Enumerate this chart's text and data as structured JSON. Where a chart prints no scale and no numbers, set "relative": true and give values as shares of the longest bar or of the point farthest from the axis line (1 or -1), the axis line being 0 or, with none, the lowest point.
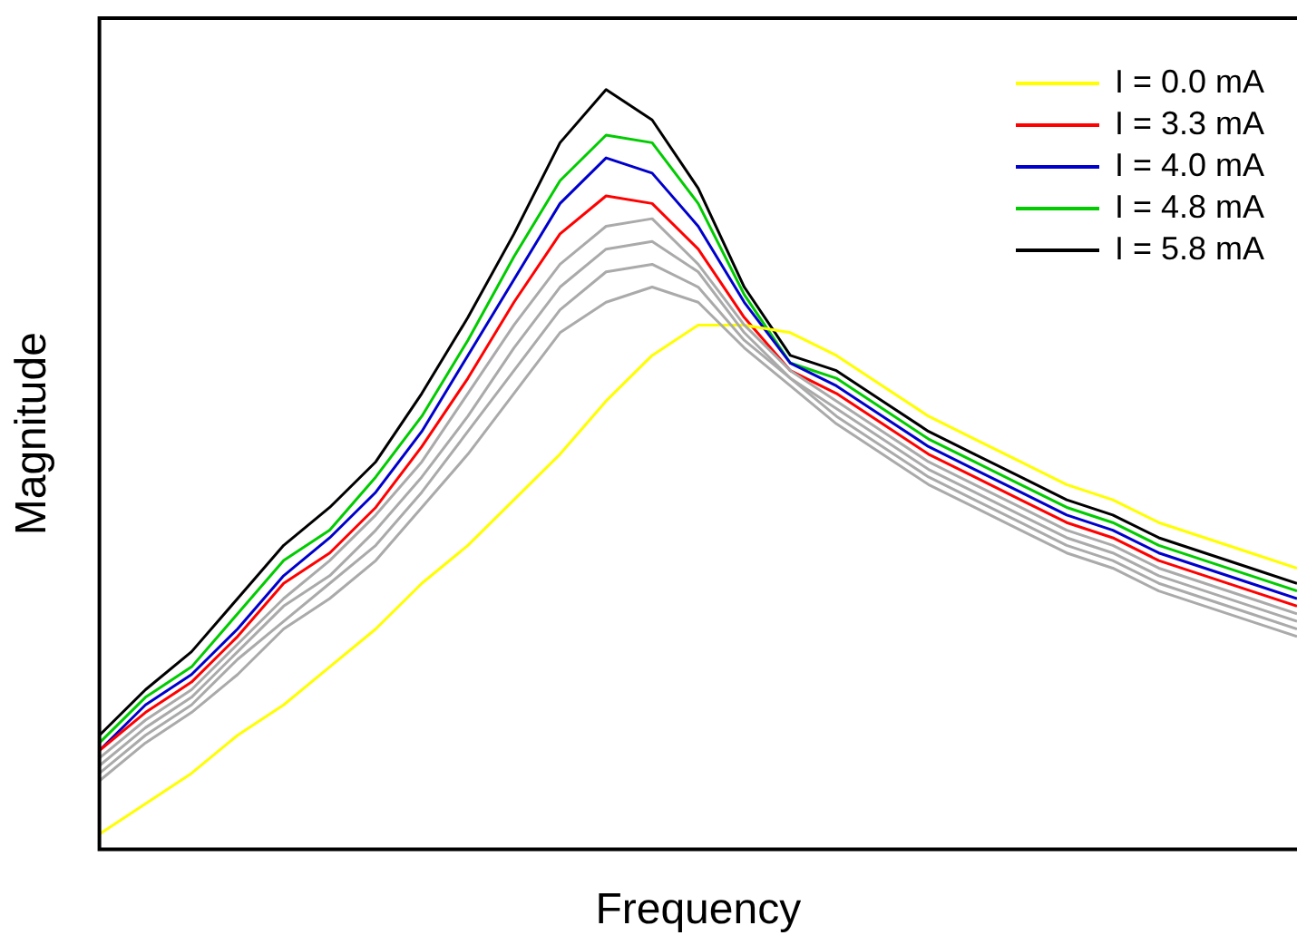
{
  "chart_data": {
    "type": "line",
    "xlabel": "Frequency",
    "ylabel": "Magnitude",
    "relative": true,
    "tick_labels": false,
    "grid": false,
    "legend": "top right",
    "marker": "none",
    "line_style": "solid",
    "categories": [
      null,
      null,
      null,
      null,
      null,
      null,
      null,
      null,
      null,
      null,
      null,
      null,
      null,
      null,
      null,
      null,
      null,
      null,
      null,
      null,
      null,
      null,
      null,
      null,
      null,
      null,
      null
    ],
    "series": [
      {
        "color": "#aaaaaa",
        "values": [
          0.09,
          0.14,
          0.18,
          0.23,
          0.29,
          0.33,
          0.38,
          0.45,
          0.52,
          0.6,
          0.68,
          0.72,
          0.74,
          0.72,
          0.66,
          0.61,
          0.56,
          0.52,
          0.48,
          0.45,
          0.42,
          0.39,
          0.37,
          0.34,
          0.32,
          0.3,
          0.28
        ]
      },
      {
        "color": "#aaaaaa",
        "values": [
          0.1,
          0.15,
          0.19,
          0.25,
          0.3,
          0.35,
          0.4,
          0.47,
          0.55,
          0.63,
          0.71,
          0.76,
          0.77,
          0.74,
          0.67,
          0.62,
          0.57,
          0.53,
          0.49,
          0.46,
          0.43,
          0.4,
          0.38,
          0.35,
          0.33,
          0.31,
          0.29
        ]
      },
      {
        "color": "#aaaaaa",
        "values": [
          0.11,
          0.16,
          0.2,
          0.26,
          0.32,
          0.36,
          0.42,
          0.49,
          0.57,
          0.66,
          0.74,
          0.79,
          0.8,
          0.76,
          0.68,
          0.62,
          0.58,
          0.54,
          0.5,
          0.47,
          0.44,
          0.41,
          0.39,
          0.36,
          0.34,
          0.32,
          0.3
        ]
      },
      {
        "color": "#aaaaaa",
        "values": [
          0.12,
          0.17,
          0.21,
          0.27,
          0.33,
          0.38,
          0.44,
          0.51,
          0.6,
          0.69,
          0.77,
          0.82,
          0.83,
          0.77,
          0.69,
          0.63,
          0.59,
          0.55,
          0.51,
          0.48,
          0.45,
          0.42,
          0.4,
          0.37,
          0.35,
          0.33,
          0.31
        ]
      },
      {
        "name": "I = 0.0 mA",
        "color": "#ffff00",
        "values": [
          0.02,
          0.06,
          0.1,
          0.15,
          0.19,
          0.24,
          0.29,
          0.35,
          0.4,
          0.46,
          0.52,
          0.59,
          0.65,
          0.69,
          0.69,
          0.68,
          0.65,
          0.61,
          0.57,
          0.54,
          0.51,
          0.48,
          0.46,
          0.43,
          0.41,
          0.39,
          0.37
        ]
      },
      {
        "name": "I = 3.3 mA",
        "color": "#ff0000",
        "values": [
          0.13,
          0.18,
          0.22,
          0.28,
          0.35,
          0.39,
          0.45,
          0.53,
          0.62,
          0.72,
          0.81,
          0.86,
          0.85,
          0.79,
          0.7,
          0.63,
          0.6,
          0.56,
          0.52,
          0.49,
          0.46,
          0.43,
          0.41,
          0.38,
          0.36,
          0.34,
          0.32
        ]
      },
      {
        "name": "I = 4.0 mA",
        "color": "#0000cc",
        "values": [
          0.13,
          0.19,
          0.23,
          0.29,
          0.36,
          0.41,
          0.47,
          0.55,
          0.65,
          0.75,
          0.85,
          0.91,
          0.89,
          0.82,
          0.72,
          0.64,
          0.61,
          0.57,
          0.53,
          0.5,
          0.47,
          0.44,
          0.42,
          0.39,
          0.37,
          0.35,
          0.33
        ]
      },
      {
        "name": "I = 4.8 mA",
        "color": "#00cc00",
        "values": [
          0.14,
          0.2,
          0.24,
          0.31,
          0.38,
          0.42,
          0.49,
          0.57,
          0.67,
          0.78,
          0.88,
          0.94,
          0.93,
          0.85,
          0.73,
          0.64,
          0.62,
          0.58,
          0.54,
          0.51,
          0.48,
          0.45,
          0.43,
          0.4,
          0.38,
          0.36,
          0.34
        ]
      },
      {
        "name": "I = 5.8 mA",
        "color": "#000000",
        "values": [
          0.15,
          0.21,
          0.26,
          0.33,
          0.4,
          0.45,
          0.51,
          0.6,
          0.7,
          0.81,
          0.93,
          1.0,
          0.96,
          0.87,
          0.74,
          0.65,
          0.63,
          0.59,
          0.55,
          0.52,
          0.49,
          0.46,
          0.44,
          0.41,
          0.39,
          0.37,
          0.35
        ]
      }
    ]
  }
}
